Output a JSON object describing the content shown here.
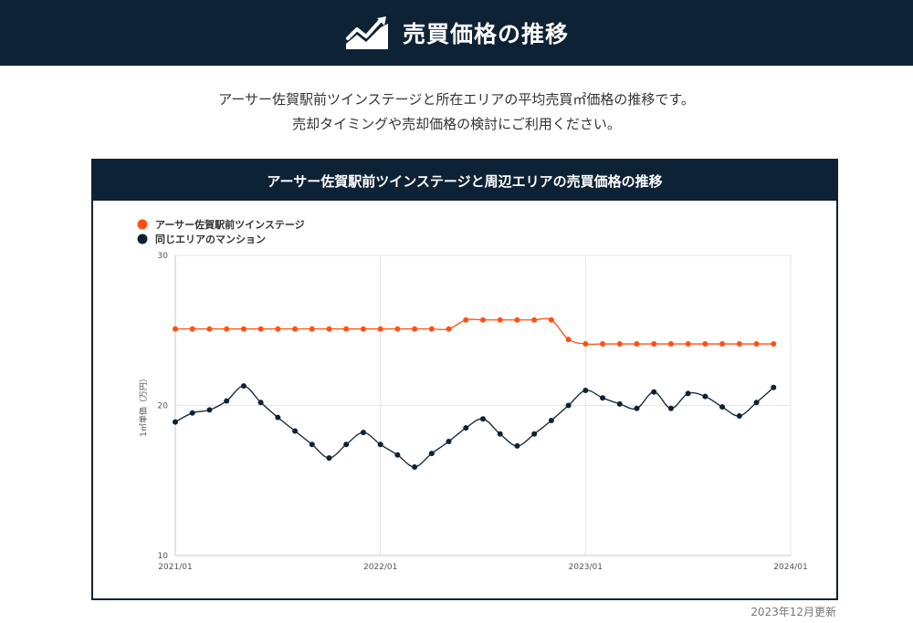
{
  "header": {
    "title": "売買価格の推移",
    "icon": "chart-trend-icon"
  },
  "intro": {
    "line1": "アーサー佐賀駅前ツインステージと所在エリアの平均売買㎡価格の推移です。",
    "line2": "売却タイミングや売却価格の検討にご利用ください。"
  },
  "chart_data": {
    "type": "line",
    "title": "アーサー佐賀駅前ツインステージと周辺エリアの売買価格の推移",
    "ylabel": "1㎡単価（万円）",
    "xlabel": "",
    "ylim": [
      10,
      30
    ],
    "yticks": [
      "10",
      "20",
      "30"
    ],
    "xticks": [
      "2021/01",
      "2022/01",
      "2023/01",
      "2024/01"
    ],
    "x": [
      "2021/01",
      "2021/02",
      "2021/03",
      "2021/04",
      "2021/05",
      "2021/06",
      "2021/07",
      "2021/08",
      "2021/09",
      "2021/10",
      "2021/11",
      "2021/12",
      "2022/01",
      "2022/02",
      "2022/03",
      "2022/04",
      "2022/05",
      "2022/06",
      "2022/07",
      "2022/08",
      "2022/09",
      "2022/10",
      "2022/11",
      "2022/12",
      "2023/01",
      "2023/02",
      "2023/03",
      "2023/04",
      "2023/05",
      "2023/06",
      "2023/07",
      "2023/08",
      "2023/09",
      "2023/10",
      "2023/11",
      "2023/12"
    ],
    "grid": true,
    "legend_position": "top-left",
    "series": [
      {
        "name": "アーサー佐賀駅前ツインステージ",
        "color": "#ff5010",
        "values": [
          25.1,
          25.1,
          25.1,
          25.1,
          25.1,
          25.1,
          25.1,
          25.1,
          25.1,
          25.1,
          25.1,
          25.1,
          25.1,
          25.1,
          25.1,
          25.1,
          25.1,
          25.7,
          25.7,
          25.7,
          25.7,
          25.7,
          25.7,
          24.4,
          24.1,
          24.1,
          24.1,
          24.1,
          24.1,
          24.1,
          24.1,
          24.1,
          24.1,
          24.1,
          24.1,
          24.1
        ]
      },
      {
        "name": "同じエリアのマンション",
        "color": "#0e2235",
        "values": [
          18.9,
          19.5,
          19.7,
          20.3,
          21.3,
          20.2,
          19.2,
          18.3,
          17.4,
          16.5,
          17.4,
          18.2,
          17.4,
          16.7,
          15.9,
          16.8,
          17.6,
          18.5,
          19.1,
          18.1,
          17.3,
          18.1,
          19.0,
          20.0,
          21.0,
          20.5,
          20.1,
          19.8,
          20.9,
          19.8,
          20.8,
          20.6,
          19.9,
          19.3,
          20.2,
          21.2
        ]
      }
    ]
  },
  "footer": {
    "update_note": "2023年12月更新"
  }
}
